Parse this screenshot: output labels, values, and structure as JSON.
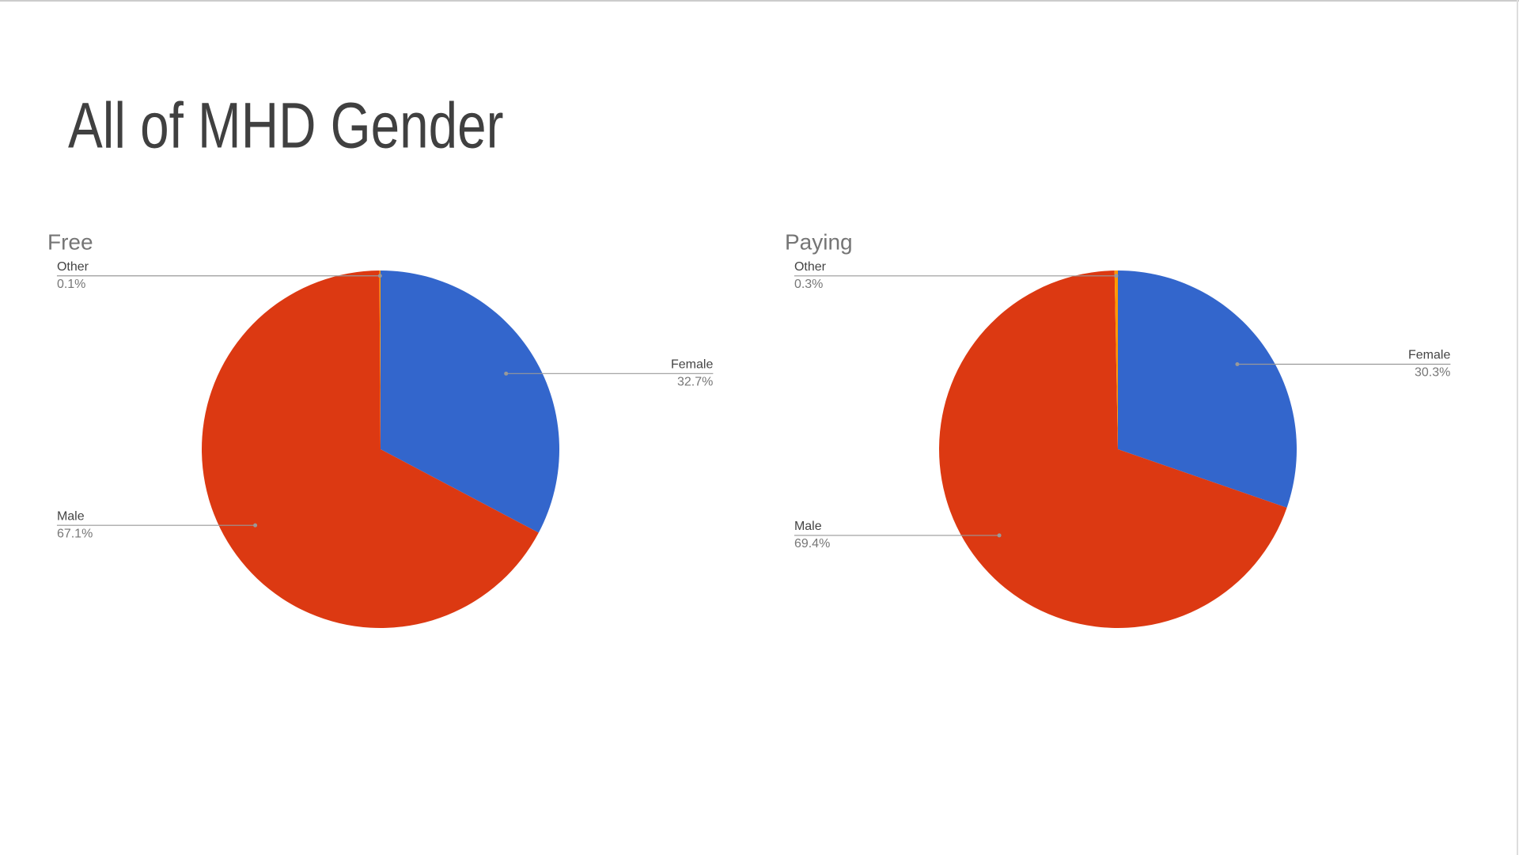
{
  "title": "All of MHD Gender",
  "chart_data": [
    {
      "type": "pie",
      "title": "Free",
      "categories": [
        "Female",
        "Male",
        "Other"
      ],
      "values": [
        32.7,
        67.1,
        0.1
      ],
      "value_labels": [
        "32.7%",
        "67.1%",
        "0.1%"
      ],
      "colors": [
        "#3366cc",
        "#dc3912",
        "#ff9900"
      ]
    },
    {
      "type": "pie",
      "title": "Paying",
      "categories": [
        "Female",
        "Male",
        "Other"
      ],
      "values": [
        30.3,
        69.4,
        0.3
      ],
      "value_labels": [
        "30.3%",
        "69.4%",
        "0.3%"
      ],
      "colors": [
        "#3366cc",
        "#dc3912",
        "#ff9900"
      ]
    }
  ]
}
